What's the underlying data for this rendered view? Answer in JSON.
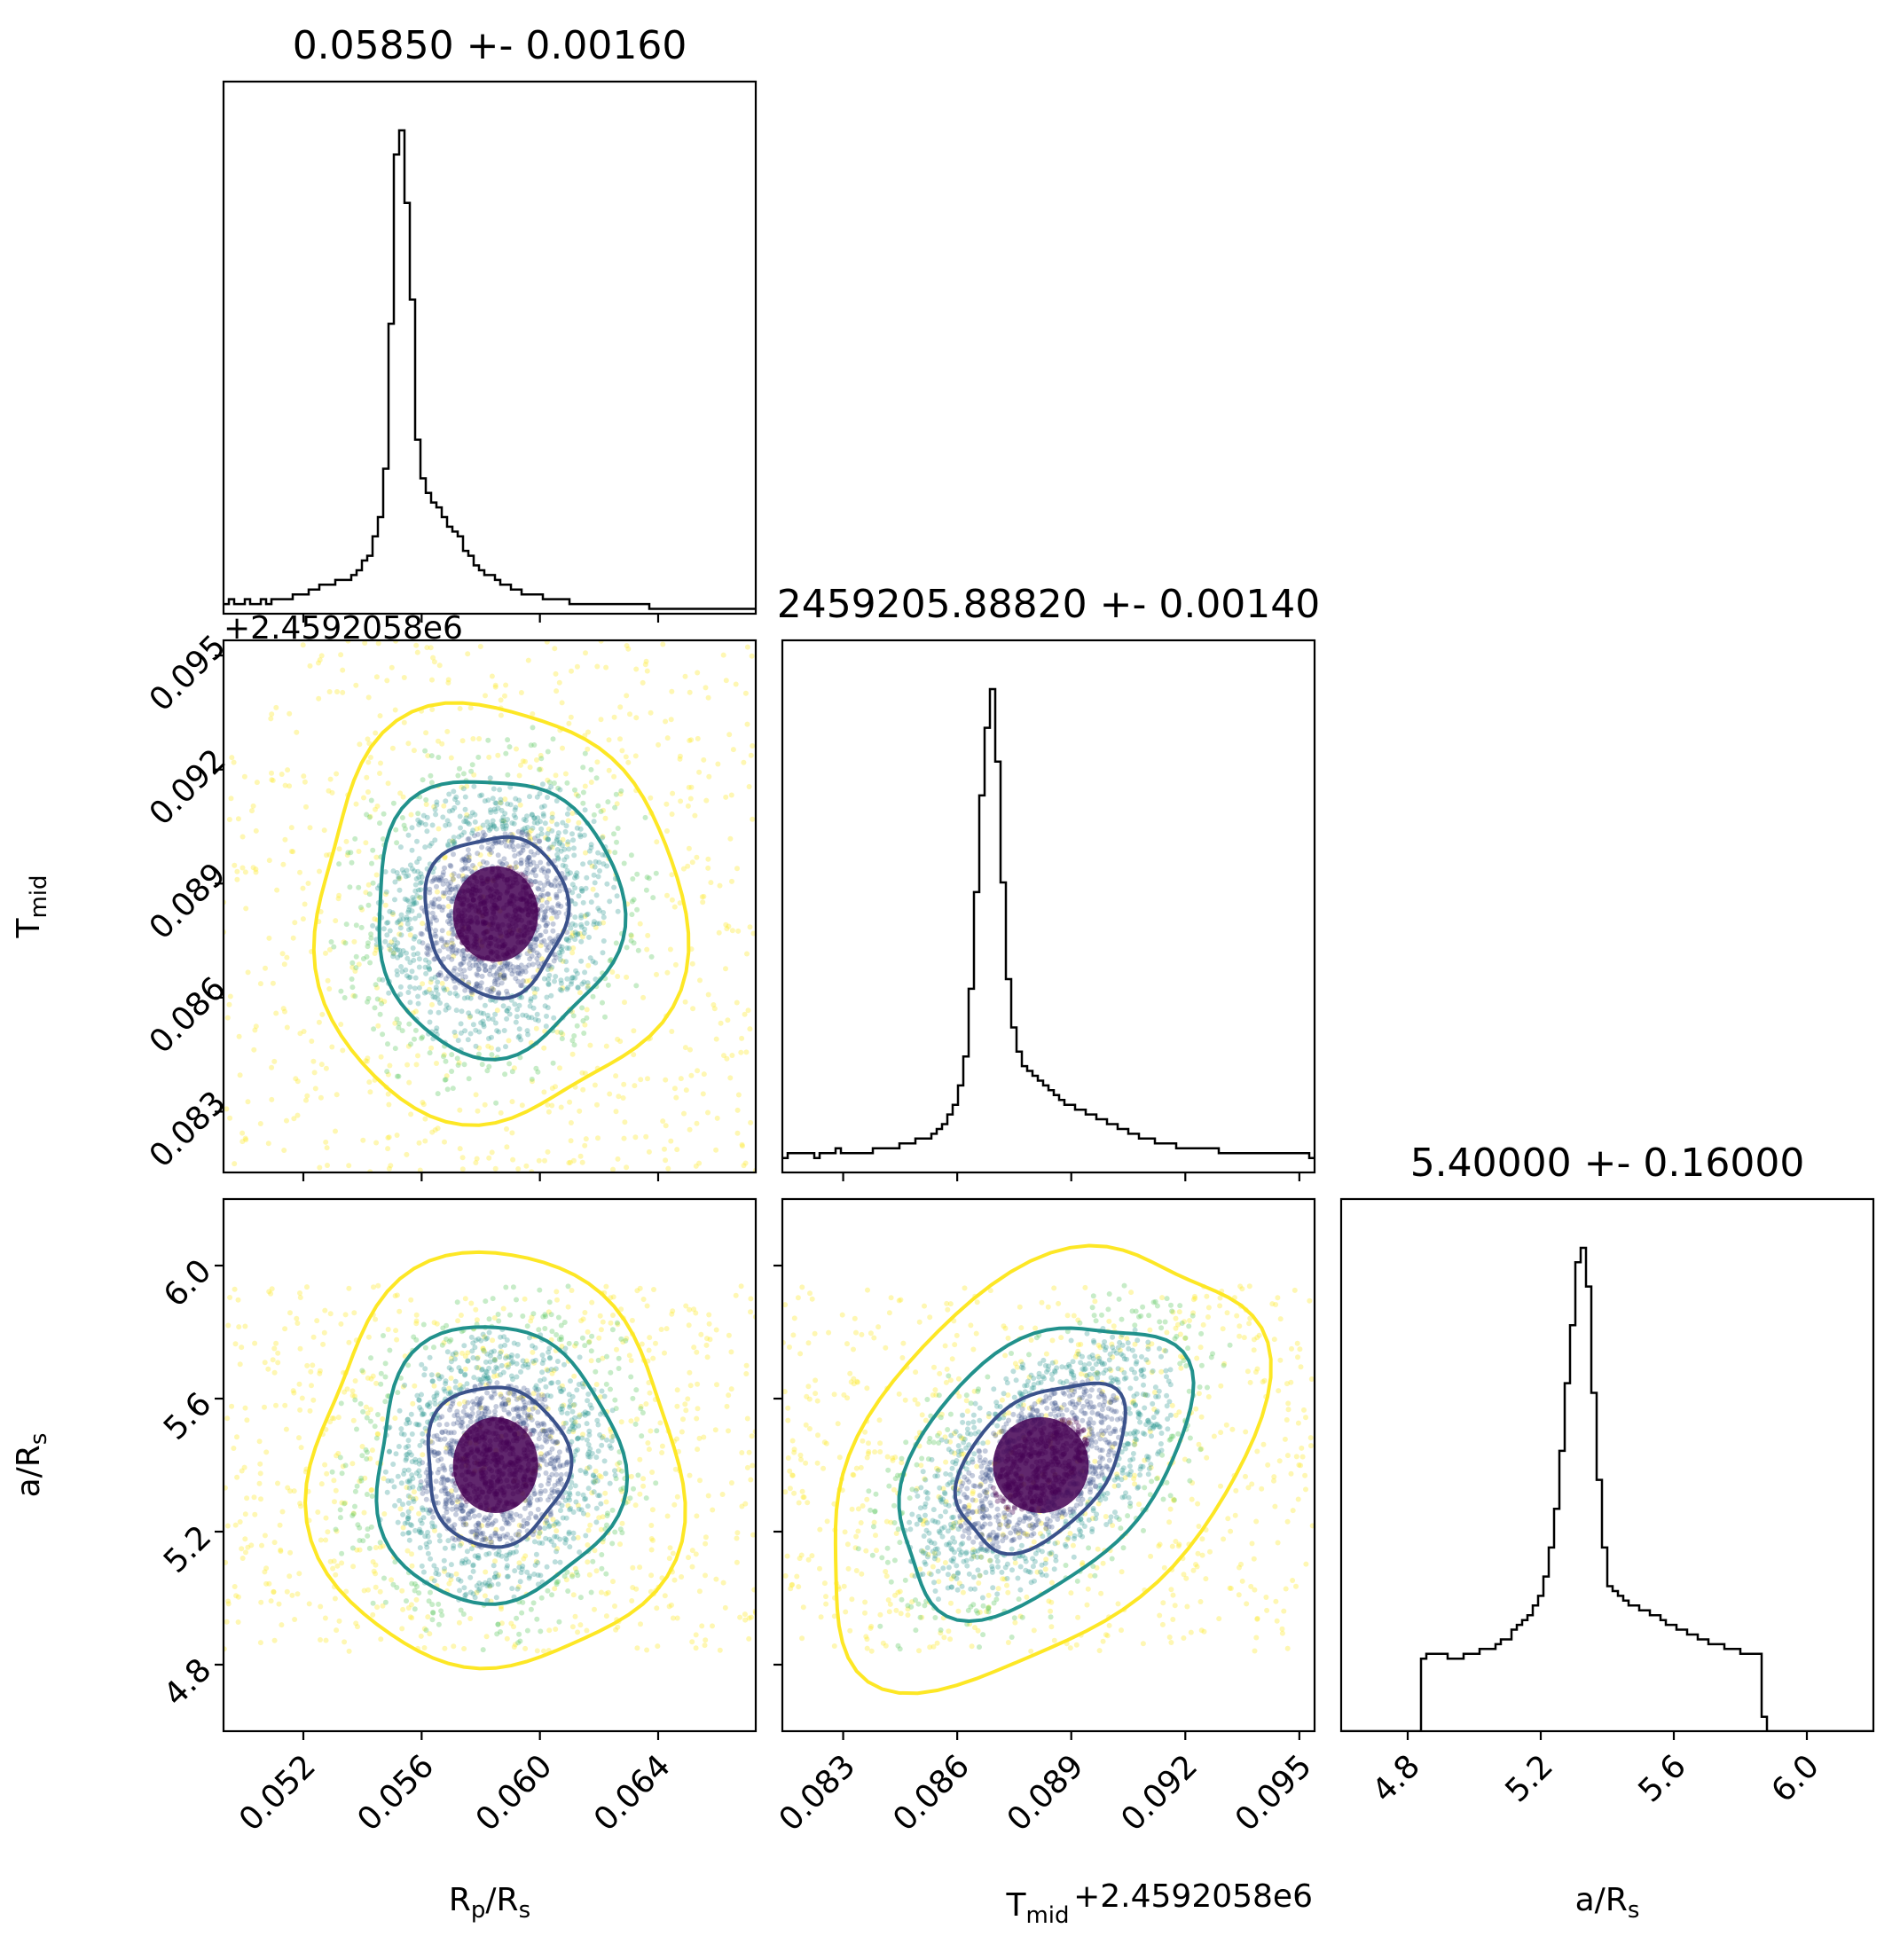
{
  "chart_data": {
    "type": "corner",
    "parameters": [
      {
        "key": "rp",
        "label_main": "R",
        "label_sub": "p",
        "label_rest": "/R",
        "label_sub2": "s",
        "range": [
          0.0493,
          0.0673
        ],
        "ticks": [
          "0.052",
          "0.056",
          "0.060",
          "0.064"
        ],
        "tick_values": [
          0.052,
          0.056,
          0.06,
          0.064
        ],
        "offset_text": "",
        "title": "0.05850 +- 0.00160",
        "median": 0.0585,
        "sigma": 0.0016
      },
      {
        "key": "tmid",
        "label_main": "T",
        "label_sub": "mid",
        "label_rest": "",
        "label_sub2": "",
        "range": [
          0.0814,
          0.0954
        ],
        "ticks": [
          "0.083",
          "0.086",
          "0.089",
          "0.092",
          "0.095"
        ],
        "tick_values": [
          0.083,
          0.086,
          0.089,
          0.092,
          0.095
        ],
        "offset_text": "+2.4592058e6",
        "title": "2459205.88820 +- 0.00140",
        "median": 0.0882,
        "sigma": 0.0014
      },
      {
        "key": "ars",
        "label_main": "a/R",
        "label_sub": "s",
        "label_rest": "",
        "label_sub2": "",
        "range": [
          4.6,
          6.2
        ],
        "ticks": [
          "4.8",
          "5.2",
          "5.6",
          "6.0"
        ],
        "tick_values": [
          4.8,
          5.2,
          5.6,
          6.0
        ],
        "offset_text": "",
        "title": "5.40000 +- 0.16000",
        "median": 5.4,
        "sigma": 0.16
      }
    ],
    "histograms": [
      {
        "param": "rp",
        "bin_start": 0.0493,
        "bin_width": 0.00018,
        "counts": [
          2,
          3,
          2,
          2,
          3,
          2,
          2,
          3,
          2,
          3,
          3,
          3,
          3,
          4,
          4,
          4,
          5,
          5,
          6,
          6,
          6,
          7,
          7,
          7,
          8,
          9,
          11,
          12,
          16,
          20,
          30,
          60,
          95,
          100,
          85,
          65,
          36,
          28,
          25,
          23,
          22,
          20,
          18,
          17,
          16,
          13,
          12,
          10,
          9,
          8,
          8,
          7,
          6,
          6,
          5,
          5,
          4,
          4,
          4,
          4,
          3,
          3,
          3,
          3,
          3,
          2,
          2,
          2,
          2,
          2,
          2,
          2,
          2,
          2,
          2,
          2,
          2,
          2,
          2,
          2,
          1,
          1,
          1,
          1,
          1,
          1,
          1,
          1,
          1,
          1,
          1,
          1,
          1,
          1,
          1,
          1,
          1,
          1,
          1,
          1
        ]
      },
      {
        "param": "tmid",
        "bin_start": 0.0814,
        "bin_width": 0.00014,
        "counts": [
          3,
          4,
          4,
          4,
          4,
          4,
          3,
          4,
          4,
          4,
          5,
          4,
          4,
          4,
          4,
          4,
          4,
          5,
          5,
          5,
          5,
          5,
          6,
          6,
          6,
          7,
          7,
          7,
          8,
          9,
          10,
          12,
          14,
          18,
          24,
          38,
          58,
          78,
          92,
          100,
          85,
          60,
          40,
          30,
          25,
          22,
          21,
          20,
          19,
          18,
          17,
          16,
          15,
          14,
          14,
          13,
          13,
          12,
          12,
          11,
          11,
          10,
          10,
          9,
          9,
          8,
          8,
          7,
          7,
          7,
          6,
          6,
          6,
          6,
          5,
          5,
          5,
          5,
          5,
          5,
          5,
          5,
          4,
          4,
          4,
          4,
          4,
          4,
          4,
          4,
          4,
          4,
          4,
          4,
          4,
          4,
          4,
          4,
          4,
          3
        ]
      },
      {
        "param": "ars",
        "bin_start": 4.6,
        "bin_width": 0.016,
        "counts": [
          0,
          0,
          0,
          0,
          0,
          0,
          0,
          0,
          0,
          0,
          0,
          0,
          0,
          0,
          0,
          15,
          16,
          16,
          16,
          16,
          15,
          15,
          15,
          16,
          16,
          16,
          17,
          17,
          17,
          18,
          19,
          19,
          21,
          22,
          23,
          24,
          26,
          28,
          32,
          38,
          46,
          58,
          72,
          84,
          97,
          100,
          92,
          70,
          52,
          38,
          30,
          29,
          28,
          27,
          26,
          26,
          25,
          25,
          24,
          24,
          23,
          22,
          22,
          21,
          21,
          20,
          20,
          19,
          19,
          18,
          18,
          18,
          17,
          17,
          17,
          16,
          16,
          16,
          16,
          3,
          0,
          0,
          0,
          0,
          0,
          0,
          0,
          0,
          0,
          0,
          0,
          0,
          0,
          0,
          0,
          0,
          0,
          0,
          0,
          0
        ]
      }
    ],
    "scatter_panels": [
      {
        "x": "rp",
        "y": "tmid",
        "contour_levels": [
          "inner",
          "middle",
          "outer"
        ]
      },
      {
        "x": "rp",
        "y": "ars",
        "contour_levels": [
          "inner",
          "middle",
          "outer"
        ]
      },
      {
        "x": "tmid",
        "y": "ars",
        "contour_levels": [
          "inner",
          "middle",
          "outer"
        ]
      }
    ],
    "contour_colors": [
      "#3b528b",
      "#21918c",
      "#fde725"
    ],
    "point_colors": [
      "#440154",
      "#3b528b",
      "#21918c",
      "#5ec962",
      "#fde725"
    ],
    "hist_color": "#000000",
    "grid": false,
    "legend": "none"
  }
}
